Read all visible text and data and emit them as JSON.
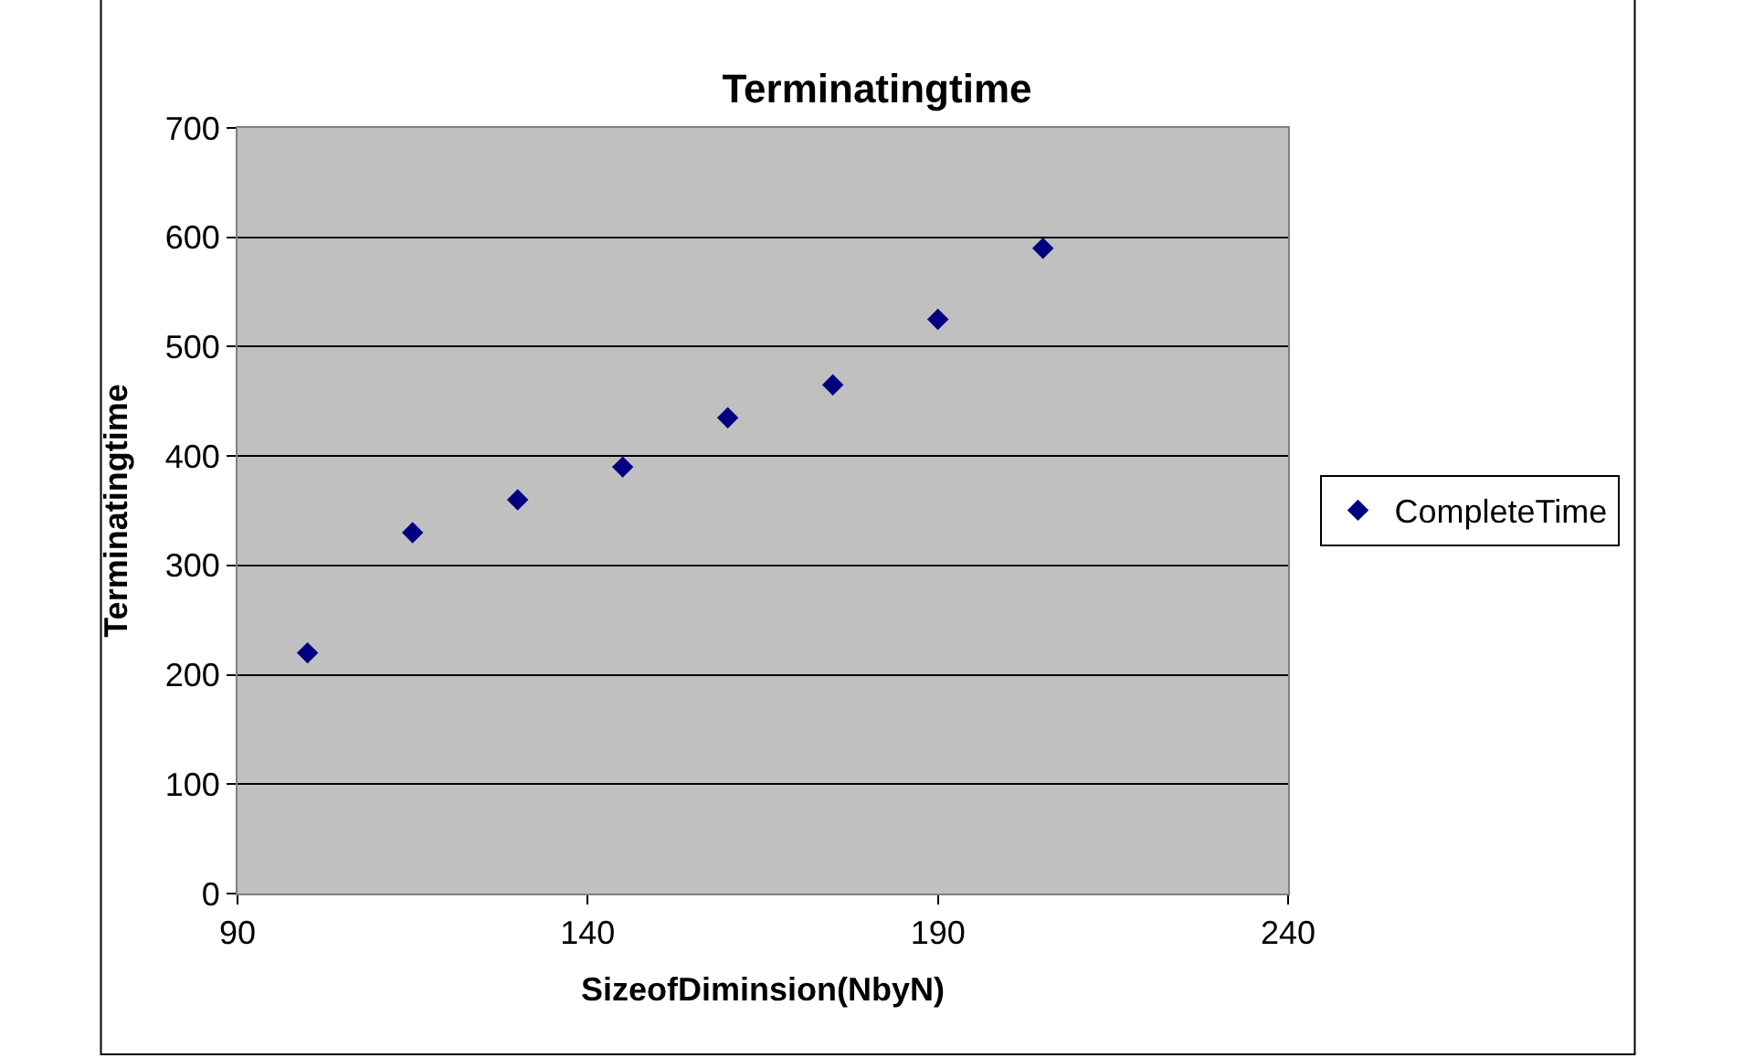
{
  "chart_data": {
    "type": "scatter",
    "title": "Terminatingtime",
    "xlabel": "SizeofDiminsion(NbyN)",
    "ylabel": "Terminatingtime",
    "series": [
      {
        "name": "CompleteTime",
        "color": "#000080",
        "x": [
          100,
          115,
          130,
          145,
          160,
          175,
          190,
          205
        ],
        "values": [
          220,
          330,
          360,
          390,
          435,
          465,
          525,
          590
        ]
      }
    ],
    "xlim": [
      90,
      240
    ],
    "xticks": [
      90,
      140,
      190,
      240
    ],
    "ylim": [
      0,
      700
    ],
    "yticks": [
      0,
      100,
      200,
      300,
      400,
      500,
      600,
      700
    ],
    "grid": "y",
    "legend": "right",
    "marker": "diamond"
  }
}
